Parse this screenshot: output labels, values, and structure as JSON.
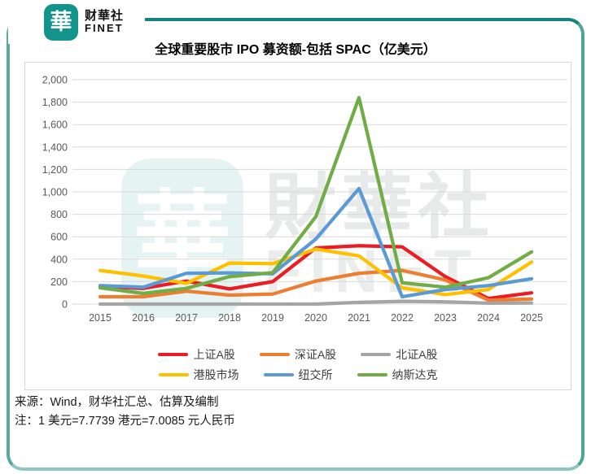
{
  "brand": {
    "logo_char": "華",
    "name": "财華社",
    "subname": "FINET"
  },
  "title": "全球重要股市 IPO 募资额-包括 SPAC（亿美元）",
  "watermark": {
    "logo_char": "華",
    "name": "財華社",
    "subname": "FINET"
  },
  "footer": {
    "source": "来源：Wind，财华社汇总、估算及编制",
    "note": "注：1 美元=7.7739 港元=7.0085 元人民币"
  },
  "colors": {
    "frame_teal": "#17837a",
    "logo_teal": "#12948a",
    "grid": "#d9d9d9",
    "axis_text": "#595959"
  },
  "chart_data": {
    "type": "line",
    "title": "全球重要股市 IPO 募资额-包括 SPAC（亿美元）",
    "categories": [
      "2015",
      "2016",
      "2017",
      "2018",
      "2019",
      "2020",
      "2021",
      "2022",
      "2023",
      "2024",
      "2025"
    ],
    "series": [
      {
        "name": "上证A股",
        "color": "#ec1c24",
        "values": [
          155,
          140,
          205,
          135,
          200,
          500,
          520,
          510,
          245,
          50,
          100
        ]
      },
      {
        "name": "深证A股",
        "color": "#ED7D31",
        "values": [
          65,
          65,
          115,
          80,
          90,
          205,
          275,
          300,
          215,
          35,
          45
        ]
      },
      {
        "name": "北证A股",
        "color": "#A5A5A5",
        "values": [
          0,
          0,
          0,
          0,
          0,
          0,
          15,
          25,
          20,
          8,
          10
        ]
      },
      {
        "name": "港股市场",
        "color": "#FFC000",
        "values": [
          300,
          250,
          185,
          365,
          360,
          490,
          430,
          145,
          85,
          130,
          375
        ]
      },
      {
        "name": "纽交所",
        "color": "#5B9BD5",
        "values": [
          165,
          150,
          275,
          278,
          270,
          580,
          1030,
          65,
          130,
          165,
          225
        ]
      },
      {
        "name": "纳斯达克",
        "color": "#70AD47",
        "values": [
          145,
          95,
          140,
          245,
          280,
          780,
          1840,
          190,
          150,
          235,
          465
        ]
      }
    ],
    "ylabel": "",
    "xlabel": "",
    "ylim": [
      0,
      2000
    ],
    "ytick_step": 200,
    "grid": true,
    "legend_position": "bottom",
    "legend_rows": [
      [
        "上证A股",
        "深证A股",
        "北证A股"
      ],
      [
        "港股市场",
        "纽交所",
        "纳斯达克"
      ]
    ]
  }
}
